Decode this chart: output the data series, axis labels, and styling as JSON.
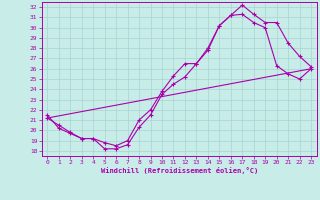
{
  "xlabel": "Windchill (Refroidissement éolien,°C)",
  "bg_color": "#c8ece8",
  "grid_color": "#a8d4d0",
  "line_color": "#aa00aa",
  "spine_color": "#aa00aa",
  "xlim": [
    -0.5,
    23.5
  ],
  "ylim": [
    17.5,
    32.5
  ],
  "xticks": [
    0,
    1,
    2,
    3,
    4,
    5,
    6,
    7,
    8,
    9,
    10,
    11,
    12,
    13,
    14,
    15,
    16,
    17,
    18,
    19,
    20,
    21,
    22,
    23
  ],
  "yticks": [
    18,
    19,
    20,
    21,
    22,
    23,
    24,
    25,
    26,
    27,
    28,
    29,
    30,
    31,
    32
  ],
  "line1_x": [
    0,
    1,
    2,
    3,
    4,
    5,
    6,
    7,
    8,
    9,
    10,
    11,
    12,
    13,
    14,
    15,
    16,
    17,
    18,
    19,
    20,
    21,
    22,
    23
  ],
  "line1_y": [
    21.2,
    20.5,
    19.8,
    19.2,
    19.2,
    18.2,
    18.2,
    18.6,
    20.3,
    21.5,
    23.5,
    24.5,
    25.2,
    26.5,
    28.0,
    30.2,
    31.2,
    32.2,
    31.3,
    30.5,
    30.5,
    28.5,
    27.2,
    26.2
  ],
  "line2_x": [
    0,
    1,
    2,
    3,
    4,
    5,
    6,
    7,
    8,
    9,
    10,
    11,
    12,
    13,
    14,
    15,
    16,
    17,
    18,
    19,
    20,
    21,
    22,
    23
  ],
  "line2_y": [
    21.5,
    20.2,
    19.7,
    19.2,
    19.2,
    18.8,
    18.5,
    19.0,
    21.0,
    22.0,
    23.8,
    25.3,
    26.5,
    26.5,
    27.8,
    30.2,
    31.2,
    31.3,
    30.5,
    30.0,
    26.3,
    25.5,
    25.0,
    26.0
  ],
  "line3_x": [
    0,
    23
  ],
  "line3_y": [
    21.2,
    26.0
  ]
}
